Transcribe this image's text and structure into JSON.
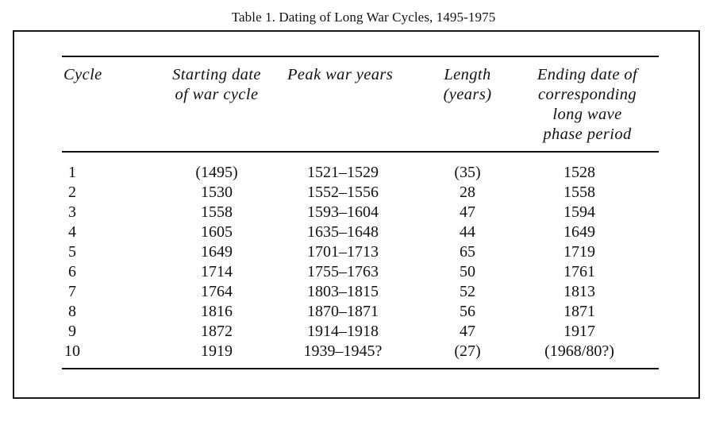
{
  "title": "Table 1.  Dating of Long War Cycles, 1495-1975",
  "columns": {
    "cycle": [
      "Cycle"
    ],
    "start": [
      "Starting date",
      "of war cycle"
    ],
    "peak": [
      "Peak war years"
    ],
    "length": [
      "Length",
      "(years)"
    ],
    "end": [
      "Ending date of",
      "corresponding",
      "long wave",
      "phase period"
    ]
  },
  "rows": [
    {
      "cycle": "1",
      "start": "(1495)",
      "peak": "1521–1529",
      "length": "(35)",
      "end": "1528"
    },
    {
      "cycle": "2",
      "start": "1530",
      "peak": "1552–1556",
      "length": "28",
      "end": "1558"
    },
    {
      "cycle": "3",
      "start": "1558",
      "peak": "1593–1604",
      "length": "47",
      "end": "1594"
    },
    {
      "cycle": "4",
      "start": "1605",
      "peak": "1635–1648",
      "length": "44",
      "end": "1649"
    },
    {
      "cycle": "5",
      "start": "1649",
      "peak": "1701–1713",
      "length": "65",
      "end": "1719"
    },
    {
      "cycle": "6",
      "start": "1714",
      "peak": "1755–1763",
      "length": "50",
      "end": "1761"
    },
    {
      "cycle": "7",
      "start": "1764",
      "peak": "1803–1815",
      "length": "52",
      "end": "1813"
    },
    {
      "cycle": "8",
      "start": "1816",
      "peak": "1870–1871",
      "length": "56",
      "end": "1871"
    },
    {
      "cycle": "9",
      "start": "1872",
      "peak": "1914–1918",
      "length": "47",
      "end": "1917"
    },
    {
      "cycle": "10",
      "start": "1919",
      "peak": "1939–1945?",
      "length": "(27)",
      "end": "(1968/80?)"
    }
  ]
}
